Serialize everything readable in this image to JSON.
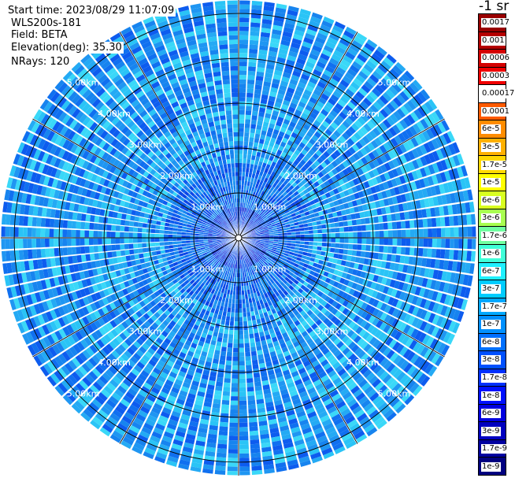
{
  "header": {
    "start_time": "Start time: 2023/08/29 11:07:09",
    "instrument": "WLS200s-181",
    "field": "Field: BETA",
    "elevation": "Elevation(deg): 35.30",
    "nrays": "NRays: 120"
  },
  "chart_data": {
    "type": "heatmap",
    "projection": "polar-ppi",
    "rays": 120,
    "max_range_km": 5.3,
    "range_ring_labels": [
      "1.00km",
      "2.00km",
      "3.00km",
      "4.00km",
      "5.00km"
    ],
    "range_ring_values_km": [
      1,
      2,
      3,
      4,
      5
    ],
    "grid": true,
    "colorbar": {
      "units": "-1 sr",
      "placement": "right",
      "labels": [
        "0.0017",
        "0.001",
        "0.0006",
        "0.0003",
        "0.00017",
        "0.0001",
        "6e-5",
        "3e-5",
        "1.7e-5",
        "1e-5",
        "6e-6",
        "3e-6",
        "1.7e-6",
        "1e-6",
        "6e-7",
        "3e-7",
        "1.7e-7",
        "1e-7",
        "6e-8",
        "3e-8",
        "1.7e-8",
        "1e-8",
        "6e-9",
        "3e-9",
        "1.7e-9",
        "1e-9"
      ],
      "colors": [
        "#990000",
        "#b50000",
        "#d40000",
        "#f00000",
        "#ffffff",
        "#ff5a00",
        "#ff8c00",
        "#ffb000",
        "#ffd800",
        "#ffff00",
        "#d8ff20",
        "#a8ff50",
        "#70ffa0",
        "#40ffd8",
        "#20f0ff",
        "#00ccff",
        "#00a8ff",
        "#0090ff",
        "#0070ff",
        "#0050ff",
        "#0030ff",
        "#0010ff",
        "#0000e0",
        "#0000c0",
        "#0000a0",
        "#000080"
      ]
    },
    "dominant_range": [
      "1.7e-8",
      "1e-7"
    ]
  }
}
